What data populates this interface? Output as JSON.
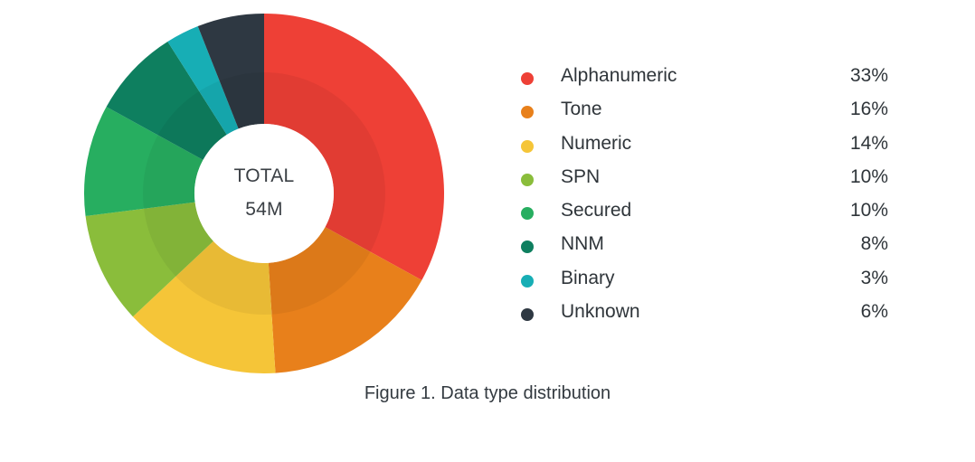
{
  "chart_data": {
    "type": "pie",
    "donut": true,
    "center": {
      "title": "TOTAL",
      "value": "54M"
    },
    "categories": [
      "Alphanumeric",
      "Tone",
      "Numeric",
      "SPN",
      "Secured",
      "NNM",
      "Binary",
      "Unknown"
    ],
    "values": [
      33,
      16,
      14,
      10,
      10,
      8,
      3,
      6
    ],
    "value_labels": [
      "33%",
      "16%",
      "14%",
      "10%",
      "10%",
      "8%",
      "3%",
      "6%"
    ],
    "colors": [
      "#ee4036",
      "#e8801b",
      "#f5c538",
      "#8abd3b",
      "#27ae60",
      "#0e7f5f",
      "#17aeb5",
      "#2e3842"
    ],
    "legend_position": "right",
    "caption": "Figure 1. Data type distribution"
  }
}
